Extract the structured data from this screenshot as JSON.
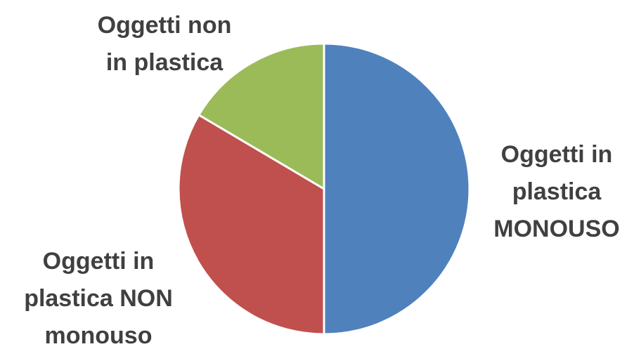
{
  "chart_data": {
    "type": "pie",
    "slices": [
      {
        "label_lines": [
          "Oggetti in",
          "plastica",
          "MONOUSO"
        ],
        "value": 50,
        "color": "#4F81BD"
      },
      {
        "label_lines": [
          "Oggetti in",
          "plastica NON",
          "monouso"
        ],
        "value": 33.5,
        "color": "#C0504D"
      },
      {
        "label_lines": [
          "Oggetti non",
          "in plastica"
        ],
        "value": 16.5,
        "color": "#9BBB59"
      }
    ],
    "start_angle": "12 o'clock",
    "direction": "clockwise",
    "slice_border_color": "#FFFFFF",
    "legend": "none"
  }
}
